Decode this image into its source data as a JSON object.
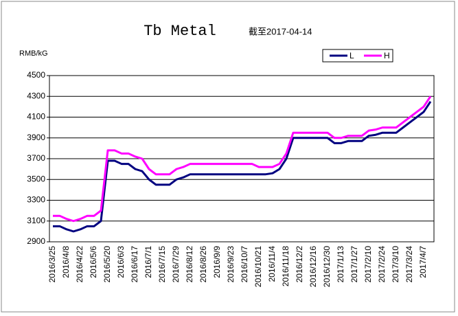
{
  "chart_data": {
    "type": "line",
    "title": "Tb Metal",
    "subtitle": "截至2017-04-14",
    "y_label": "RMB/kG",
    "categories": [
      "2016/3/25",
      null,
      "2016/4/8",
      null,
      "2016/4/22",
      null,
      "2016/5/6",
      null,
      "2016/5/20",
      null,
      "2016/6/3",
      null,
      "2016/6/17",
      null,
      "2016/7/1",
      null,
      "2016/7/15",
      null,
      "2016/7/29",
      null,
      "2016/8/12",
      null,
      "2016/8/26",
      null,
      "2016/9/9",
      null,
      "2016/9/23",
      null,
      "2016/10/7",
      null,
      "2016/10/21",
      null,
      "2016/11/4",
      null,
      "2016/11/18",
      null,
      "2016/12/2",
      null,
      "2016/12/16",
      null,
      "2016/12/30",
      null,
      "2017/1/13",
      null,
      "2017/1/27",
      null,
      "2017/2/10",
      null,
      "2017/2/24",
      null,
      "2017/3/10",
      null,
      "2017/3/24",
      null,
      "2017/4/7",
      null
    ],
    "series": [
      {
        "name": "L",
        "color": "#000080",
        "values": [
          3050,
          3050,
          3020,
          3000,
          3020,
          3050,
          3050,
          3100,
          3680,
          3680,
          3650,
          3650,
          3600,
          3580,
          3500,
          3450,
          3450,
          3450,
          3500,
          3520,
          3550,
          3550,
          3550,
          3550,
          3550,
          3550,
          3550,
          3550,
          3550,
          3550,
          3550,
          3550,
          3560,
          3600,
          3700,
          3900,
          3900,
          3900,
          3900,
          3900,
          3900,
          3850,
          3850,
          3870,
          3870,
          3870,
          3920,
          3930,
          3950,
          3950,
          3950,
          4000,
          4050,
          4100,
          4150,
          4250
        ]
      },
      {
        "name": "H",
        "color": "#ff00ff",
        "values": [
          3150,
          3150,
          3120,
          3100,
          3120,
          3150,
          3150,
          3200,
          3780,
          3780,
          3750,
          3750,
          3720,
          3700,
          3600,
          3550,
          3550,
          3550,
          3600,
          3620,
          3650,
          3650,
          3650,
          3650,
          3650,
          3650,
          3650,
          3650,
          3650,
          3650,
          3620,
          3620,
          3620,
          3650,
          3750,
          3950,
          3950,
          3950,
          3950,
          3950,
          3950,
          3900,
          3900,
          3920,
          3920,
          3920,
          3970,
          3980,
          4000,
          4000,
          4000,
          4050,
          4100,
          4150,
          4200,
          4300
        ]
      }
    ],
    "ylim": [
      2900,
      4500
    ],
    "yticks": [
      2900,
      3100,
      3300,
      3500,
      3700,
      3900,
      4100,
      4300,
      4500
    ],
    "grid": true,
    "legend": "top-right"
  }
}
